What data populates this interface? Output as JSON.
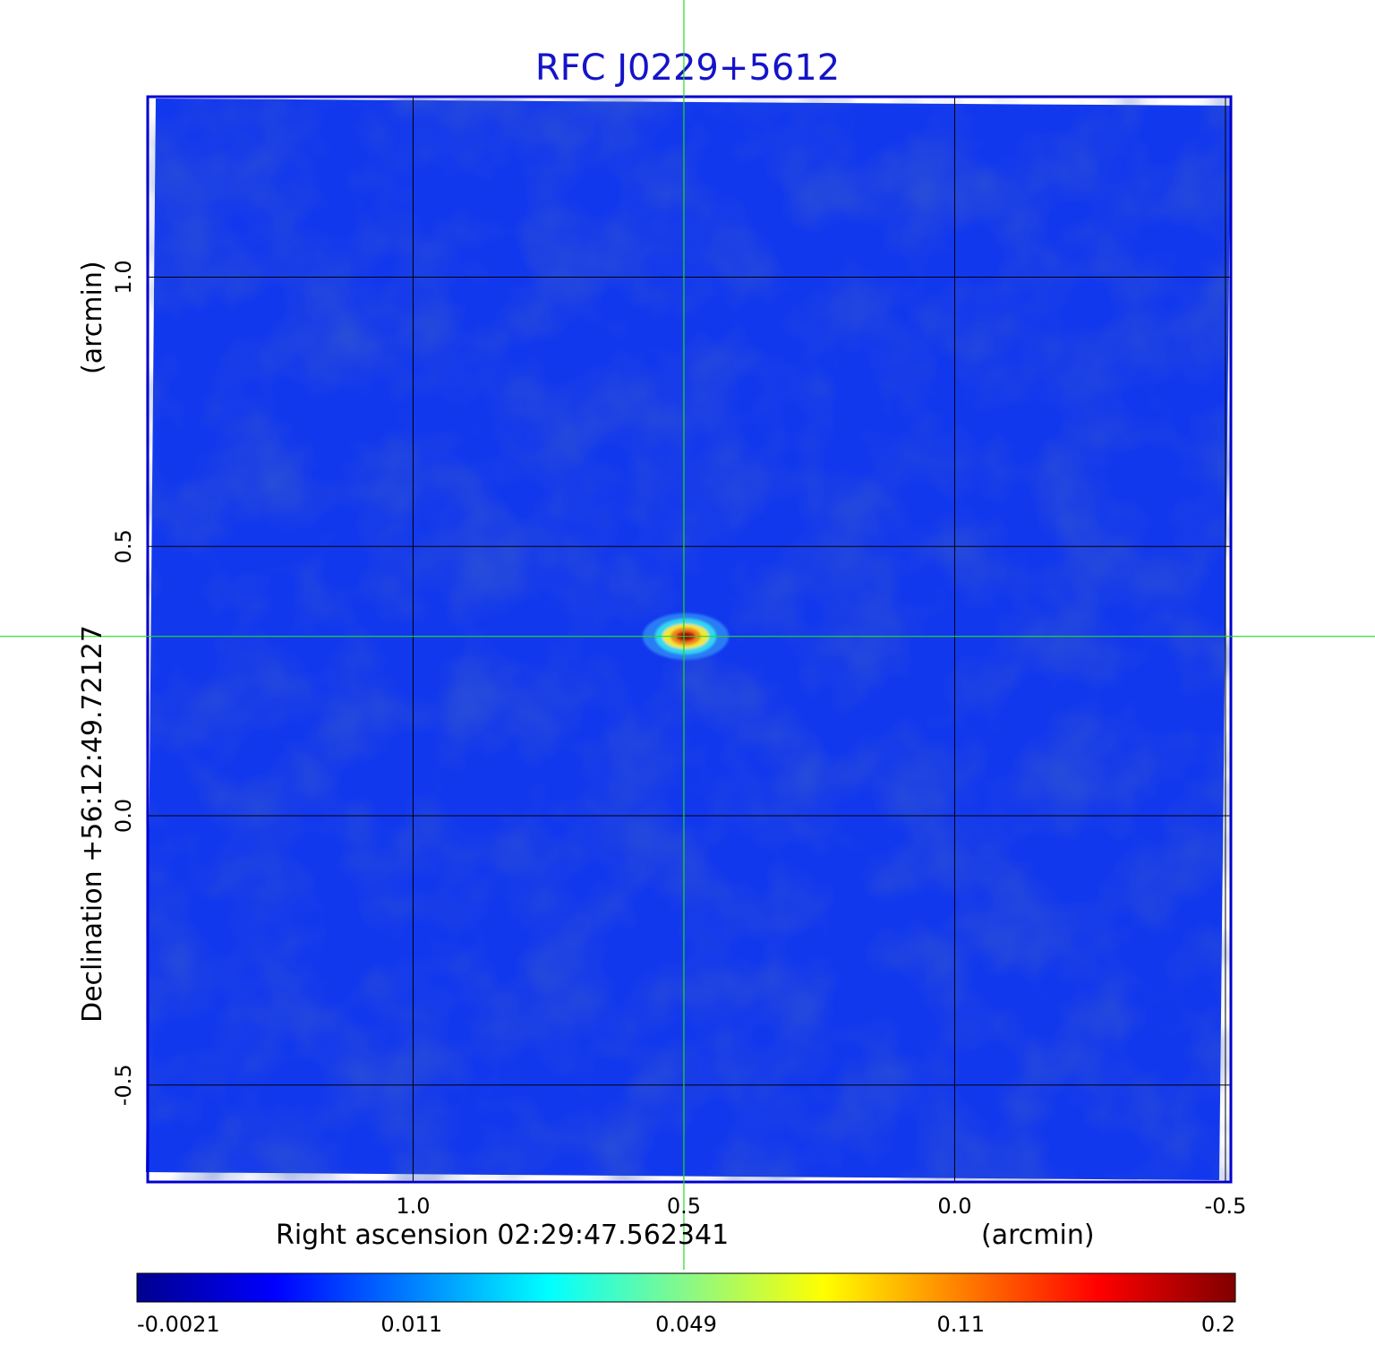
{
  "chart_data": {
    "type": "heatmap",
    "title": "RFC J0229+5612",
    "colormap": "jet",
    "background_color": "#1238ee",
    "frame_color": "#0000cc",
    "crosshair_color": "#22dd22",
    "grid": true,
    "x_axis": {
      "label": "Right ascension  02:29:47.562341",
      "unit_label": "(arcmin)",
      "direction": "decreasing",
      "ticks": [
        1.0,
        0.5,
        0.0,
        -0.5
      ],
      "tick_labels": [
        "1.0",
        "0.5",
        "0.0",
        "-0.5"
      ],
      "range": [
        1.49,
        -0.51
      ]
    },
    "y_axis": {
      "label": "Declination  +56:12:49.72127",
      "unit_label": "(arcmin)",
      "ticks": [
        1.0,
        0.5,
        0.0,
        -0.5
      ],
      "tick_labels": [
        "1.0",
        "0.5",
        "0.0",
        "-0.5"
      ],
      "range": [
        -0.68,
        1.335
      ]
    },
    "source": {
      "ra_offset": 0.5,
      "dec_offset": 0.333,
      "peak": 0.2
    },
    "colorbar": {
      "tick_values": [
        -0.0021,
        0.011,
        0.049,
        0.11,
        0.2
      ],
      "tick_labels": [
        "-0.0021",
        "0.011",
        "0.049",
        "0.11",
        "0.2"
      ],
      "range": [
        -0.0021,
        0.2
      ]
    }
  }
}
